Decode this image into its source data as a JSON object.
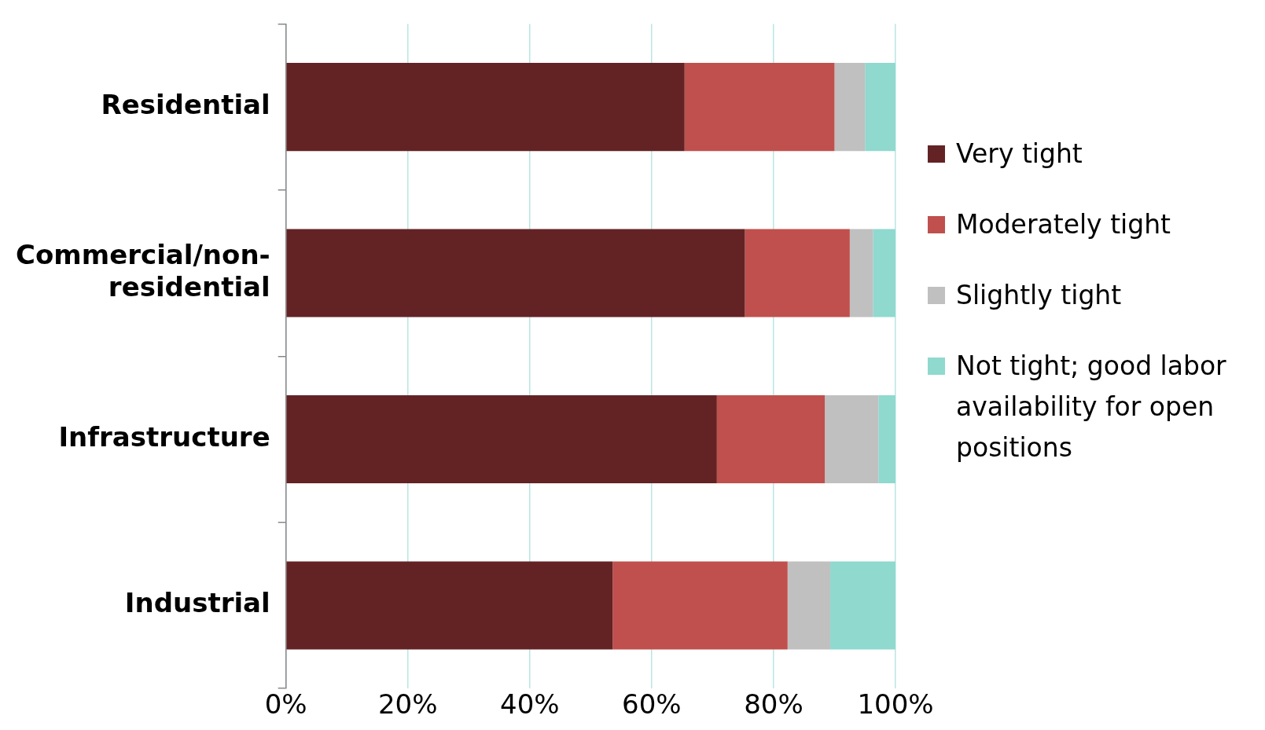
{
  "chart_data": {
    "type": "bar",
    "orientation": "horizontal",
    "stacked": true,
    "categories": [
      "Residential",
      "Commercial/non-residential",
      "Infrastructure",
      "Industrial"
    ],
    "series": [
      {
        "name": "Very tight",
        "color": "#632325",
        "values": [
          65.4,
          75.3,
          70.7,
          53.6
        ]
      },
      {
        "name": "Moderately tight",
        "color": "#c0504d",
        "values": [
          24.6,
          17.2,
          17.7,
          28.7
        ]
      },
      {
        "name": "Slightly tight",
        "color": "#c0c0c0",
        "values": [
          5.0,
          3.8,
          8.8,
          7.0
        ]
      },
      {
        "name": "Not tight; good labor availability for open positions",
        "color": "#8fd9cf",
        "values": [
          5.0,
          3.7,
          2.8,
          10.7
        ]
      }
    ],
    "xlim": [
      0,
      100
    ],
    "xticks": [
      {
        "value": 0,
        "label": "0%"
      },
      {
        "value": 20,
        "label": "20%"
      },
      {
        "value": 40,
        "label": "40%"
      },
      {
        "value": 60,
        "label": "60%"
      },
      {
        "value": 80,
        "label": "80%"
      },
      {
        "value": 100,
        "label": "100%"
      }
    ],
    "grid": "x",
    "legend": "right"
  }
}
